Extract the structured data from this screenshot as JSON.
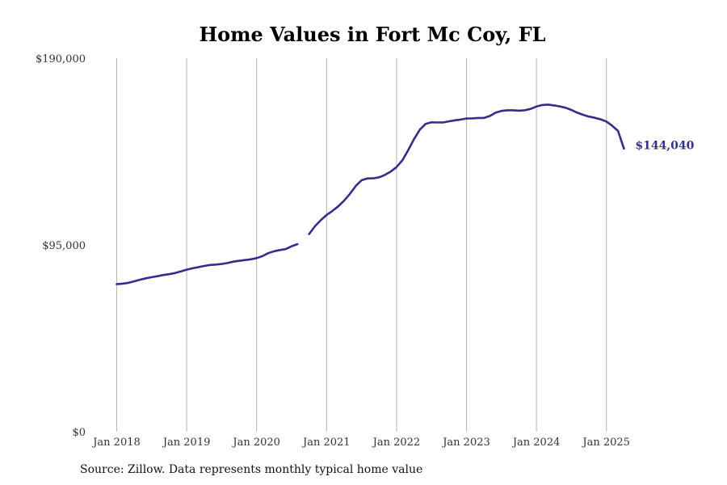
{
  "chart_data": {
    "type": "line",
    "title": "Home Values in Fort Mc Coy, FL",
    "xlabel": "",
    "ylabel": "",
    "ylim": [
      0,
      190000
    ],
    "xlim": [
      "2017-12-15",
      "2025-06-15"
    ],
    "y_ticks": [
      {
        "value": 0,
        "label": "$0"
      },
      {
        "value": 95000,
        "label": "$95,000"
      },
      {
        "value": 190000,
        "label": "$190,000"
      }
    ],
    "x_ticks": [
      {
        "value": "2018-01-01",
        "label": "Jan 2018"
      },
      {
        "value": "2019-01-01",
        "label": "Jan 2019"
      },
      {
        "value": "2020-01-01",
        "label": "Jan 2020"
      },
      {
        "value": "2021-01-01",
        "label": "Jan 2021"
      },
      {
        "value": "2022-01-01",
        "label": "Jan 2022"
      },
      {
        "value": "2023-01-01",
        "label": "Jan 2023"
      },
      {
        "value": "2024-01-01",
        "label": "Jan 2024"
      },
      {
        "value": "2025-01-01",
        "label": "Jan 2025"
      }
    ],
    "grid": {
      "vertical": true,
      "horizontal": false
    },
    "series": [
      {
        "color": "#332e8c",
        "segments": [
          {
            "x": [
              "2018-01",
              "2018-02",
              "2018-03",
              "2018-04",
              "2018-05",
              "2018-06",
              "2018-07",
              "2018-08",
              "2018-09",
              "2018-10",
              "2018-11",
              "2018-12",
              "2019-01",
              "2019-02",
              "2019-03",
              "2019-04",
              "2019-05",
              "2019-06",
              "2019-07",
              "2019-08",
              "2019-09",
              "2019-10",
              "2019-11",
              "2019-12",
              "2020-01",
              "2020-02",
              "2020-03",
              "2020-04",
              "2020-05",
              "2020-06",
              "2020-07",
              "2020-08"
            ],
            "y": [
              75000,
              75300,
              75700,
              76500,
              77300,
              78000,
              78600,
              79100,
              79700,
              80100,
              80700,
              81500,
              82400,
              83100,
              83700,
              84300,
              84800,
              85000,
              85300,
              85800,
              86500,
              86900,
              87300,
              87700,
              88300,
              89300,
              90800,
              91800,
              92400,
              92900,
              94300,
              95400
            ]
          },
          {
            "x": [
              "2020-10",
              "2020-11",
              "2020-12",
              "2021-01",
              "2021-02",
              "2021-03",
              "2021-04",
              "2021-05",
              "2021-06",
              "2021-07",
              "2021-08",
              "2021-09",
              "2021-10",
              "2021-11",
              "2021-12",
              "2022-01",
              "2022-02",
              "2022-03",
              "2022-04",
              "2022-05",
              "2022-06",
              "2022-07",
              "2022-08",
              "2022-09",
              "2022-10",
              "2022-11",
              "2022-12",
              "2023-01",
              "2023-02",
              "2023-03",
              "2023-04",
              "2023-05",
              "2023-06",
              "2023-07",
              "2023-08",
              "2023-09",
              "2023-10",
              "2023-11",
              "2023-12",
              "2024-01",
              "2024-02",
              "2024-03",
              "2024-04",
              "2024-05",
              "2024-06",
              "2024-07",
              "2024-08",
              "2024-09",
              "2024-10",
              "2024-11",
              "2024-12",
              "2025-01",
              "2025-02",
              "2025-03",
              "2025-04"
            ],
            "y": [
              100500,
              104500,
              107600,
              110200,
              112300,
              114600,
              117500,
              121000,
              125000,
              127900,
              128800,
              128900,
              129400,
              130600,
              132300,
              134600,
              138000,
              143200,
              148800,
              153700,
              156600,
              157400,
              157300,
              157300,
              157900,
              158400,
              158800,
              159300,
              159400,
              159600,
              159600,
              160600,
              162300,
              163200,
              163500,
              163500,
              163300,
              163500,
              164200,
              165400,
              166200,
              166400,
              166000,
              165500,
              164800,
              163700,
              162300,
              161200,
              160300,
              159700,
              158900,
              157800,
              155600,
              153000,
              144040
            ]
          }
        ]
      }
    ],
    "end_label": "$144,040",
    "source": "Source: Zillow. Data represents monthly typical home value"
  }
}
